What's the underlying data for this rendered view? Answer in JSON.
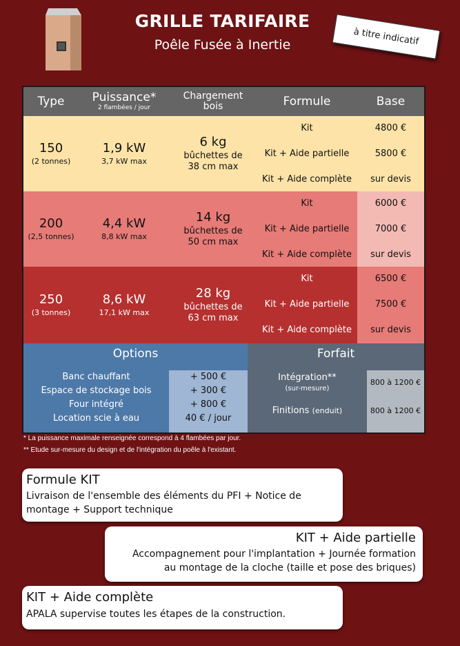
{
  "header": {
    "title": "GRILLE TARIFAIRE",
    "subtitle": "Poêle Fusée à Inertie",
    "tag": "à titre indicatif"
  },
  "table": {
    "headers": {
      "type": "Type",
      "puissance": "Puissance*",
      "puissance_sub": "2 flambées / jour",
      "chargement": "Chargement bois",
      "formule": "Formule",
      "base": "Base"
    },
    "rows": [
      {
        "type": "150",
        "type_sub": "(2 tonnes)",
        "power": "1,9 kW",
        "power_sub": "3,7 kW max",
        "load": "6 kg",
        "load_sub1": "bûchettes de",
        "load_sub2": "38 cm max",
        "formulas": [
          "Kit",
          "Kit + Aide partielle",
          "Kit + Aide complète"
        ],
        "prices": [
          "4800 €",
          "5800 €",
          "sur devis"
        ],
        "bg": "#fde3a7",
        "base_bg": "#fde3a7",
        "text_color": "#111111"
      },
      {
        "type": "200",
        "type_sub": "(2,5 tonnes)",
        "power": "4,4 kW",
        "power_sub": "8,8 kW max",
        "load": "14 kg",
        "load_sub1": "bûchettes de",
        "load_sub2": "50 cm max",
        "formulas": [
          "Kit",
          "Kit + Aide partielle",
          "Kit + Aide complète"
        ],
        "prices": [
          "6000 €",
          "7000 €",
          "sur devis"
        ],
        "bg": "#e77b77",
        "base_bg": "#f3b9b3",
        "text_color": "#111111"
      },
      {
        "type": "250",
        "type_sub": "(3 tonnes)",
        "power": "8,6 kW",
        "power_sub": "17,1 kW max",
        "load": "28 kg",
        "load_sub1": "bûchettes de",
        "load_sub2": "63 cm max",
        "formulas": [
          "Kit",
          "Kit + Aide partielle",
          "Kit + Aide complète"
        ],
        "prices": [
          "6500 €",
          "7500 €",
          "sur devis"
        ],
        "bg": "#b5302f",
        "base_bg": "#e77b77",
        "text_color": "#ffffff"
      }
    ],
    "options": {
      "title": "Options",
      "items": [
        {
          "label": "Banc chauffant",
          "value": "+ 500 €"
        },
        {
          "label": "Espace de stockage bois",
          "value": "+ 300 €"
        },
        {
          "label": "Four intégré",
          "value": "+ 800 €"
        },
        {
          "label": "Location scie à eau",
          "value": "40 € / jour"
        }
      ]
    },
    "forfait": {
      "title": "Forfait",
      "items": [
        {
          "label": "Intégration**",
          "sub": "(sur-mesure)",
          "value": "800 à 1200 €"
        },
        {
          "label": "Finitions",
          "sub": "(enduit)",
          "value": "800 à 1200 €"
        }
      ]
    }
  },
  "notes": [
    "* La puissance maximale renseignée correspond à 4 flambées par jour.",
    "** Etude sur-mesure du design et de l'intégration du poêle à l'existant."
  ],
  "formules": [
    {
      "title": "Formule KIT",
      "desc1": "Livraison de l'ensemble des éléments du PFI + Notice de",
      "desc2": "montage + Support technique"
    },
    {
      "title": "KIT + Aide partielle",
      "desc1": "Accompagnement pour l'implantation + Journée formation",
      "desc2": "au montage de la cloche (taille et pose des briques)"
    },
    {
      "title": "KIT + Aide complète",
      "desc1": "APALA supervise toutes les étapes de la construction.",
      "desc2": ""
    }
  ],
  "colors": {
    "background": "#6e1214",
    "header_gray": "#656565",
    "options_blue": "#4d79a8",
    "forfait_slate": "#5b6877"
  },
  "icons": {
    "stove": "stove-illustration"
  }
}
